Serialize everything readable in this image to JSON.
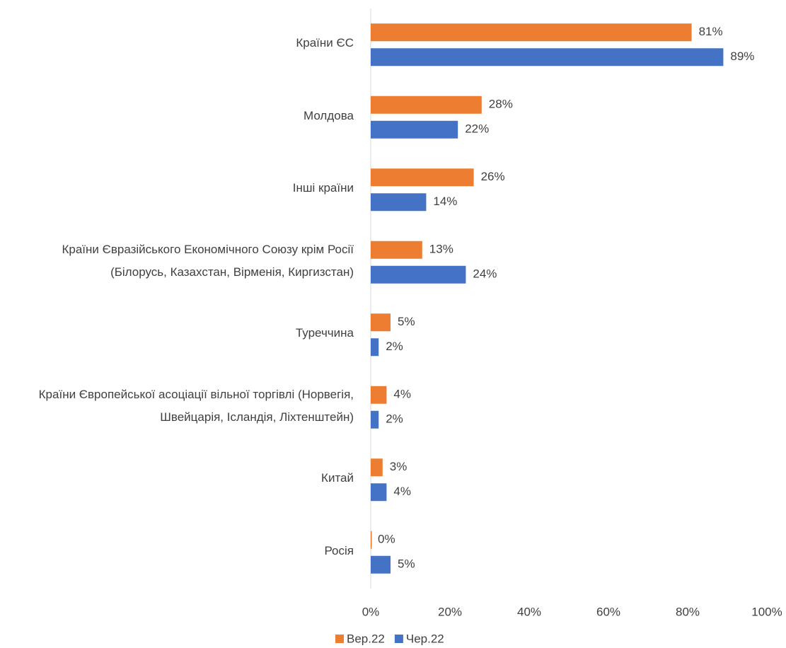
{
  "chart_data": {
    "type": "barh",
    "categories": [
      "Країни ЄС",
      "Молдова",
      "Інші країни",
      "Країни Євразійського Економічного Союзу крім Росії (Білорусь, Казахстан, Вірменія, Киргизстан)",
      "Туреччина",
      "Країни Європейської асоціації вільної торгівлі (Норвегія, Швейцарія, Ісландія, Ліхтенштейн)",
      "Китай",
      "Росія"
    ],
    "series": [
      {
        "name": "Вер.22",
        "color": "#ED7D31",
        "values": [
          81,
          28,
          26,
          13,
          5,
          4,
          3,
          0
        ],
        "value_labels": [
          "81%",
          "28%",
          "26%",
          "13%",
          "5%",
          "4%",
          "3%",
          "0%"
        ]
      },
      {
        "name": "Чер.22",
        "color": "#4472C4",
        "values": [
          89,
          22,
          14,
          24,
          2,
          2,
          4,
          5
        ],
        "value_labels": [
          "89%",
          "22%",
          "14%",
          "24%",
          "2%",
          "2%",
          "4%",
          "5%"
        ]
      }
    ],
    "xlim": [
      0,
      100
    ],
    "xticks": [
      {
        "value": 0,
        "label": "0%"
      },
      {
        "value": 20,
        "label": "20%"
      },
      {
        "value": 40,
        "label": "40%"
      },
      {
        "value": 60,
        "label": "60%"
      },
      {
        "value": 80,
        "label": "80%"
      },
      {
        "value": 100,
        "label": "100%"
      }
    ],
    "legend": "bottom"
  }
}
